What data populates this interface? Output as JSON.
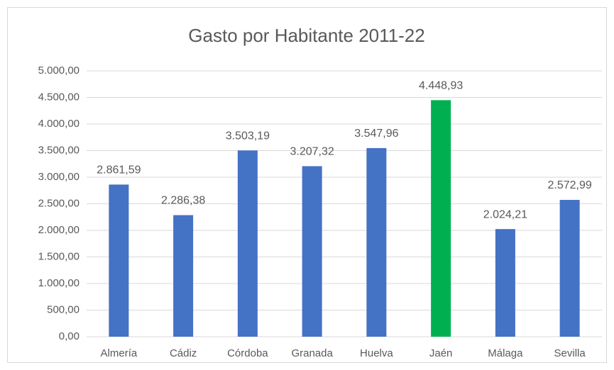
{
  "chart_data": {
    "type": "bar",
    "title": "Gasto por Habitante 2011-22",
    "categories": [
      "Almería",
      "Cádiz",
      "Córdoba",
      "Granada",
      "Huelva",
      "Jaén",
      "Málaga",
      "Sevilla"
    ],
    "values": [
      2861.59,
      2286.38,
      3503.19,
      3207.32,
      3547.96,
      4448.93,
      2024.21,
      2572.99
    ],
    "value_labels": [
      "2.861,59",
      "2.286,38",
      "3.503,19",
      "3.207,32",
      "3.547,96",
      "4.448,93",
      "2.024,21",
      "2.572,99"
    ],
    "colors": [
      "#4472c4",
      "#4472c4",
      "#4472c4",
      "#4472c4",
      "#4472c4",
      "#00b050",
      "#4472c4",
      "#4472c4"
    ],
    "ylim": [
      0,
      5000
    ],
    "yticks": [
      {
        "value": 0,
        "label": "0,00"
      },
      {
        "value": 500,
        "label": "500,00"
      },
      {
        "value": 1000,
        "label": "1.000,00"
      },
      {
        "value": 1500,
        "label": "1.500,00"
      },
      {
        "value": 2000,
        "label": "2.000,00"
      },
      {
        "value": 2500,
        "label": "2.500,00"
      },
      {
        "value": 3000,
        "label": "3.000,00"
      },
      {
        "value": 3500,
        "label": "3.500,00"
      },
      {
        "value": 4000,
        "label": "4.000,00"
      },
      {
        "value": 4500,
        "label": "4.500,00"
      },
      {
        "value": 5000,
        "label": "5.000,00"
      }
    ],
    "grid": true
  }
}
